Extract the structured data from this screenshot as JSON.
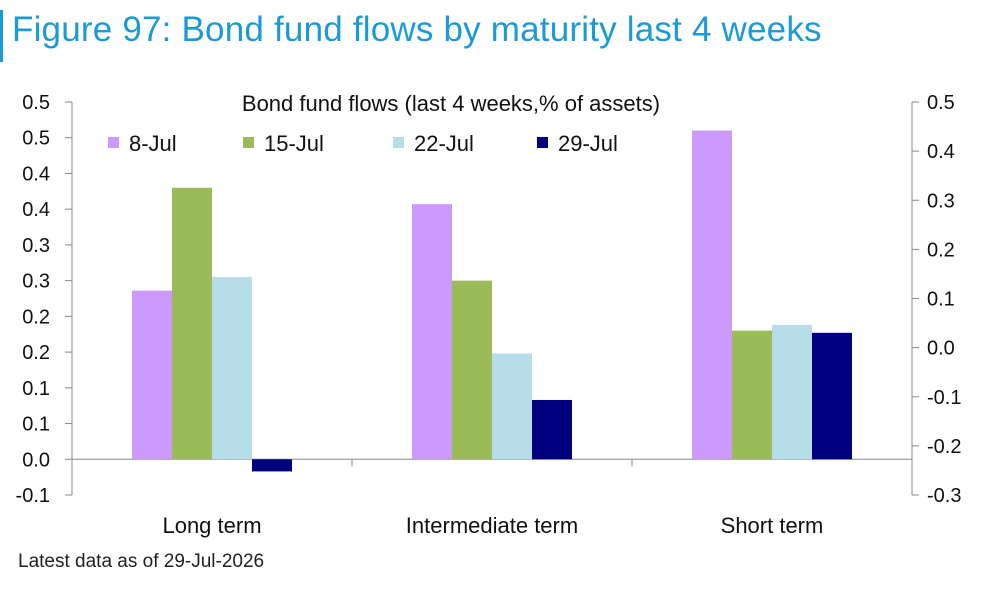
{
  "header": {
    "title": "Figure 97: Bond fund flows by maturity last 4 weeks"
  },
  "footer": {
    "note": "Latest data as of 29-Jul-2026"
  },
  "chart_data": {
    "type": "bar",
    "title": "Bond fund flows (last 4 weeks,% of assets)",
    "categories": [
      "Long term",
      "Intermediate term",
      "Short term"
    ],
    "series": [
      {
        "name": "8-Jul",
        "color": "#cc99ff",
        "values": [
          0.236,
          0.357,
          0.46
        ]
      },
      {
        "name": "15-Jul",
        "color": "#9bbb59",
        "values": [
          0.38,
          0.25,
          0.18
        ]
      },
      {
        "name": "22-Jul",
        "color": "#b7dde8",
        "values": [
          0.255,
          0.148,
          0.188
        ]
      },
      {
        "name": "29-Jul",
        "color": "#000080",
        "values": [
          -0.017,
          0.083,
          0.177
        ]
      }
    ],
    "ylim": [
      -0.05,
      0.5
    ],
    "y_tick_values": [
      -0.05,
      0,
      0.05,
      0.1,
      0.15,
      0.2,
      0.25,
      0.3,
      0.35,
      0.4,
      0.45,
      0.5
    ],
    "y_tick_labels": [
      "-0.1",
      "0.0",
      "0.1",
      "0.1",
      "0.2",
      "0.2",
      "0.3",
      "0.3",
      "0.4",
      "0.4",
      "0.5",
      "0.5"
    ],
    "y2lim": [
      -0.3,
      0.5
    ],
    "y2_ticks": [
      "-0.3",
      "-0.2",
      "-0.1",
      "0.0",
      "0.1",
      "0.2",
      "0.3",
      "0.4",
      "0.5"
    ],
    "legend_position": "top",
    "grid": false
  }
}
